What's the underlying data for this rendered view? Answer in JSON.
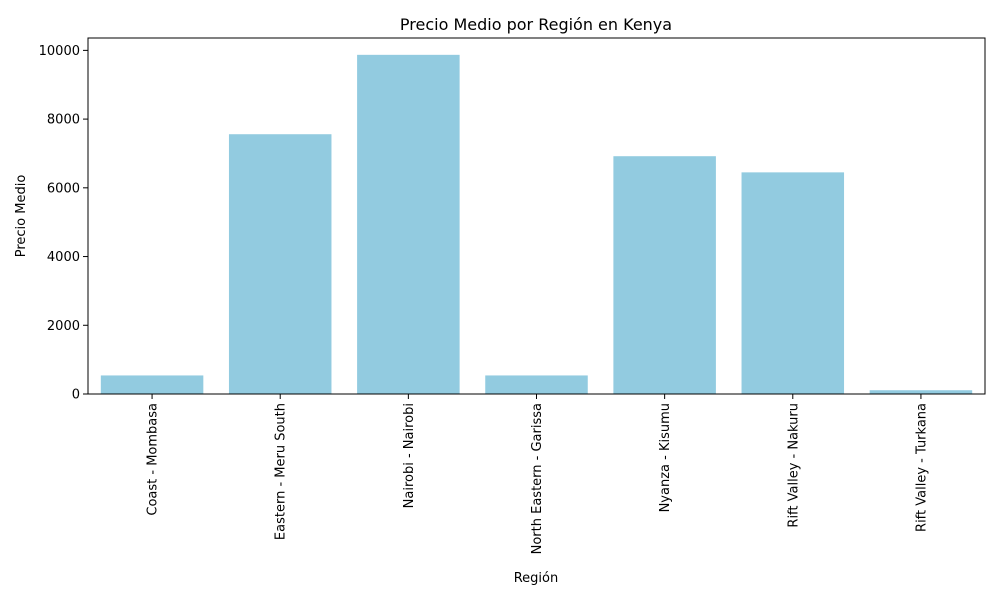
{
  "chart_data": {
    "type": "bar",
    "title": "Precio Medio por Región en Kenya",
    "xlabel": "Región",
    "ylabel": "Precio Medio",
    "categories": [
      "Coast - Mombasa",
      "Eastern - Meru South",
      "Nairobi - Nairobi",
      "North Eastern - Garissa",
      "Nyanza - Kisumu",
      "Rift Valley - Nakuru",
      "Rift Valley - Turkana"
    ],
    "values": [
      540,
      7560,
      9870,
      540,
      6920,
      6450,
      110
    ],
    "yticks": [
      0,
      2000,
      4000,
      6000,
      8000,
      10000
    ],
    "ylim": [
      0,
      10360
    ],
    "bar_color": "#92cbe0",
    "grid": false,
    "legend": "none"
  }
}
